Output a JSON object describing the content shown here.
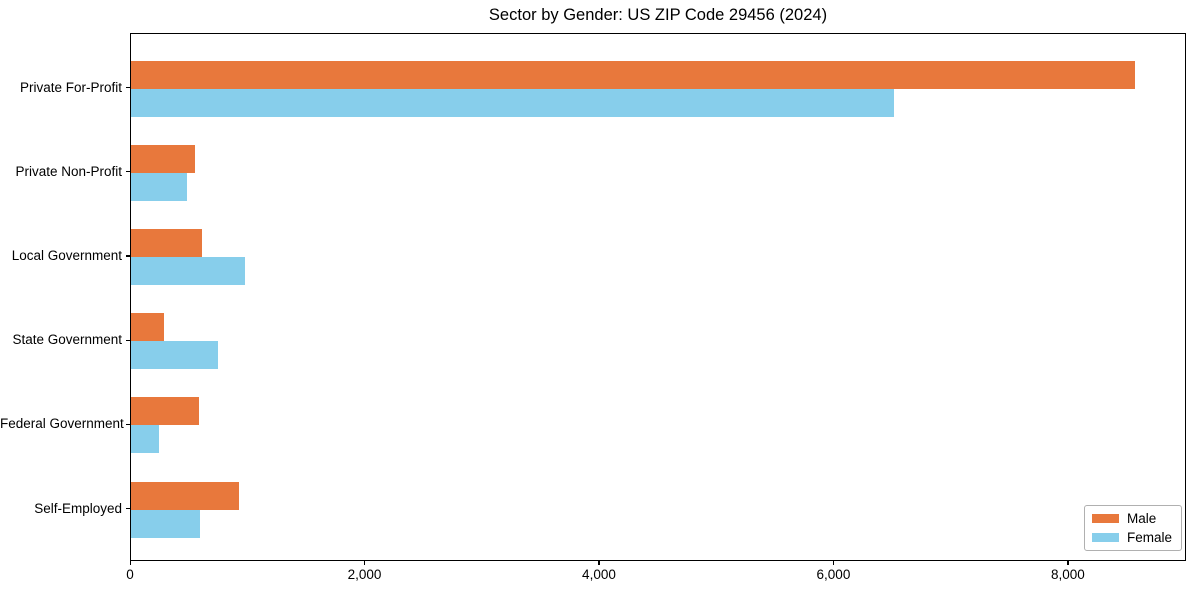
{
  "chart_data": {
    "type": "bar",
    "orientation": "horizontal",
    "title": "Sector by Gender: US ZIP Code 29456 (2024)",
    "categories": [
      "Private For-Profit",
      "Private Non-Profit",
      "Local Government",
      "State Government",
      "Federal Government",
      "Self-Employed"
    ],
    "series": [
      {
        "name": "Male",
        "color": "#e8783c",
        "values": [
          8580,
          550,
          610,
          280,
          580,
          920
        ]
      },
      {
        "name": "Female",
        "color": "#87ceeb",
        "values": [
          6520,
          480,
          970,
          740,
          240,
          590
        ]
      }
    ],
    "xlabel": "",
    "ylabel": "",
    "xlim": [
      0,
      9007
    ],
    "xticks": {
      "values": [
        0,
        2000,
        4000,
        6000,
        8000
      ],
      "labels": [
        "0",
        "2,000",
        "4,000",
        "6,000",
        "8,000"
      ]
    },
    "legend": {
      "position": "lower right",
      "entries": [
        "Male",
        "Female"
      ]
    },
    "grid": false
  },
  "colors": {
    "background": "#ffffff",
    "frame": "#000000",
    "text": "#000000",
    "legend_border": "#b0b0b0"
  }
}
